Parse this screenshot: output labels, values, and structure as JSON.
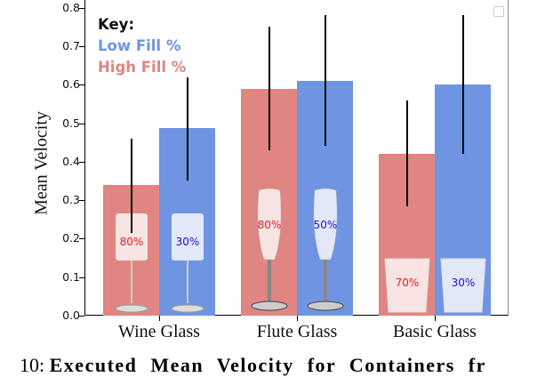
{
  "chart_data": {
    "type": "bar",
    "title": "",
    "xlabel": "",
    "ylabel": "Mean Velocity",
    "ylim": [
      0,
      0.8
    ],
    "yticks": [
      "0.0",
      "0.1",
      "0.2",
      "0.3",
      "0.4",
      "0.5",
      "0.6",
      "0.7",
      "0.8"
    ],
    "categories": [
      "Wine Glass",
      "Flute Glass",
      "Basic Glass"
    ],
    "series": [
      {
        "name": "High Fill %",
        "color": "#e08582",
        "values": [
          0.34,
          0.59,
          0.42
        ],
        "error_low": [
          0.215,
          0.43,
          0.285
        ],
        "error_high": [
          0.46,
          0.75,
          0.56
        ],
        "fill_labels": [
          "80%",
          "80%",
          "70%"
        ]
      },
      {
        "name": "Low Fill %",
        "color": "#6f94e2",
        "values": [
          0.487,
          0.61,
          0.6
        ],
        "error_low": [
          0.35,
          0.44,
          0.42
        ],
        "error_high": [
          0.62,
          0.78,
          0.78
        ],
        "fill_labels": [
          "30%",
          "50%",
          "30%"
        ]
      }
    ],
    "legend": {
      "title": "Key:",
      "entries": [
        "Low Fill %",
        "High Fill %"
      ],
      "position": "upper left"
    },
    "grid": false
  },
  "key": {
    "title": "Key:",
    "low": "Low Fill %",
    "high": "High Fill %",
    "low_color": "#6f94e2",
    "high_color": "#e08582"
  },
  "caption": {
    "prefix": "10:",
    "text": "Executed Mean Velocity for Containers fr"
  }
}
